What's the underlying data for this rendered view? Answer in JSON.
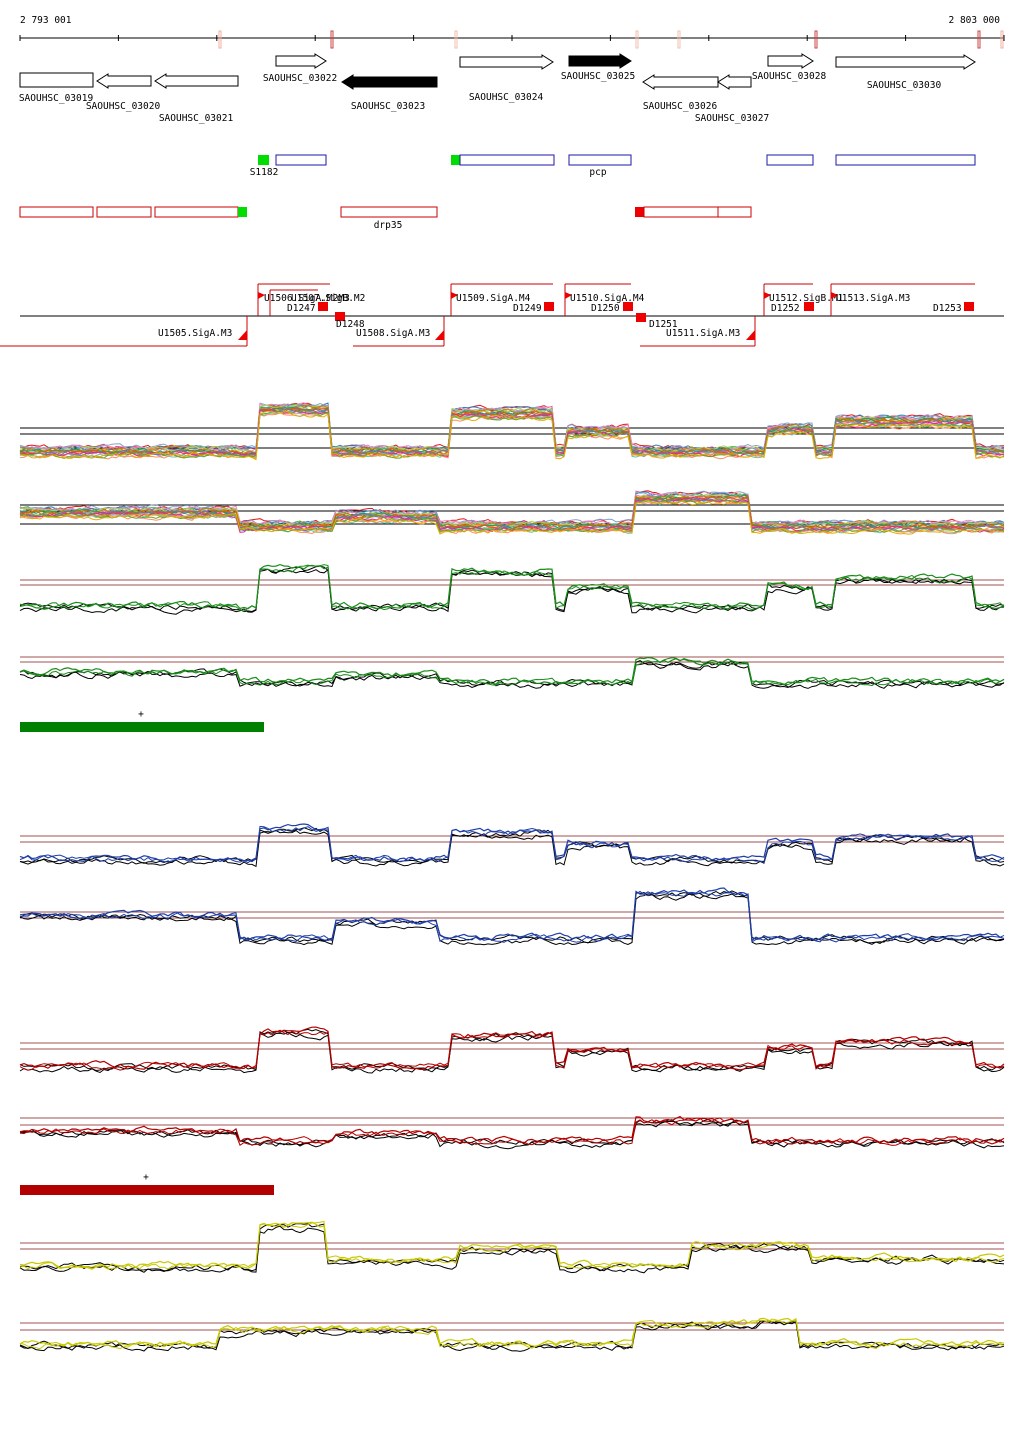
{
  "ruler": {
    "start_label": "2 793 001",
    "end_label": "2 803 000"
  },
  "genes": [
    {
      "label": "SAOUHSC_03019",
      "strand": "+",
      "filled": false
    },
    {
      "label": "SAOUHSC_03020",
      "strand": "-",
      "filled": false
    },
    {
      "label": "SAOUHSC_03021",
      "strand": "-",
      "filled": false
    },
    {
      "label": "SAOUHSC_03022",
      "strand": "+",
      "filled": false
    },
    {
      "label": "SAOUHSC_03023",
      "strand": "-",
      "filled": true
    },
    {
      "label": "SAOUHSC_03024",
      "strand": "+",
      "filled": false
    },
    {
      "label": "SAOUHSC_03025",
      "strand": "+",
      "filled": true
    },
    {
      "label": "SAOUHSC_03026",
      "strand": "-",
      "filled": false
    },
    {
      "label": "SAOUHSC_03027",
      "strand": "-",
      "filled": false
    },
    {
      "label": "SAOUHSC_03028",
      "strand": "+",
      "filled": false
    },
    {
      "label": "SAOUHSC_03030",
      "strand": "+",
      "filled": false
    }
  ],
  "plus_features": [
    {
      "label": "S1182",
      "type": "srna"
    },
    {
      "label": "",
      "type": "cds"
    },
    {
      "label": "",
      "type": "srna"
    },
    {
      "label": "",
      "type": "cds"
    },
    {
      "label": "pcp",
      "type": "cds"
    },
    {
      "label": "",
      "type": "cds"
    },
    {
      "label": "",
      "type": "cds"
    }
  ],
  "minus_features": [
    {
      "label": "",
      "type": "cds"
    },
    {
      "label": "",
      "type": "cds"
    },
    {
      "label": "",
      "type": "cds"
    },
    {
      "label": "",
      "type": "srna"
    },
    {
      "label": "drp35",
      "type": "cds"
    },
    {
      "label": "",
      "type": "srna"
    },
    {
      "label": "",
      "type": "cds"
    },
    {
      "label": "",
      "type": "cds"
    }
  ],
  "transcription_units": {
    "plus": [
      {
        "label": "U1506.SigA.M2M3"
      },
      {
        "label": "U1509.SigA.M4"
      },
      {
        "label": "U1510.SigA.M4"
      },
      {
        "label": "U1512.SigB.M1"
      },
      {
        "label": "U1513.SigA.M3"
      }
    ],
    "plus_extra": [
      {
        "label": "U1507.SigB.M2"
      }
    ],
    "minus": [
      {
        "label": "U1505.SigA.M3"
      },
      {
        "label": "U1508.SigA.M3"
      },
      {
        "label": "U1511.SigA.M3"
      }
    ],
    "downshifts": [
      {
        "label": "D1247"
      },
      {
        "label": "D1248"
      },
      {
        "label": "D1249"
      },
      {
        "label": "D1250"
      },
      {
        "label": "D1251"
      },
      {
        "label": "D1252"
      },
      {
        "label": "D1253"
      }
    ]
  },
  "scale_bars": [
    {
      "label": "+",
      "color": "#008000"
    },
    {
      "label": "+",
      "color": "#b30000"
    }
  ],
  "track_colors": {
    "multi_condition": [
      "#e41a1c",
      "#377eb8",
      "#4daf4a",
      "#984ea3",
      "#ff7f00",
      "#a65628",
      "#f781bf",
      "#999999",
      "#66c2a5",
      "#fc8d62",
      "#8da0cb",
      "#e78ac3",
      "#a6d854",
      "#b8860b",
      "#1b9e77",
      "#d95f02",
      "#7570b3",
      "#e7298a",
      "#66a61e",
      "#e6ab02"
    ],
    "green": "#1a8c1a",
    "blue": "#1f3fa8",
    "red": "#b30000",
    "yellow": "#c8c800",
    "threshold": "#a05050",
    "gene_filled": "#000000",
    "plus_feature": "#1a1aa8",
    "minus_feature": "#cc0000",
    "srna": "#00dd00",
    "tu_line": "#cc0000",
    "marker": "#ee0000"
  }
}
